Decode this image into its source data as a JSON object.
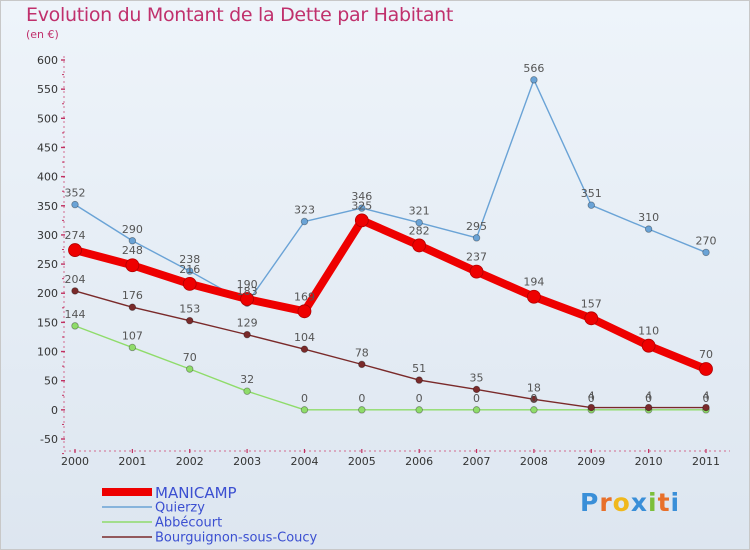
{
  "header": {
    "title": "Evolution du Montant de la Dette par Habitant",
    "subtitle": "(en €)"
  },
  "logo": {
    "text": "Proxiti",
    "letters": [
      "P",
      "r",
      "o",
      "x",
      "i",
      "t",
      "i"
    ],
    "colors": [
      "#3a8fd8",
      "#e8702a",
      "#f0b81c",
      "#3a8fd8",
      "#7cbf3a",
      "#e8702a",
      "#3a8fd8"
    ]
  },
  "chart_data": {
    "type": "line",
    "title": "Evolution du Montant de la Dette par Habitant",
    "subtitle": "(en €)",
    "xlabel": "",
    "ylabel": "",
    "categories": [
      "2000",
      "2001",
      "2002",
      "2003",
      "2004",
      "2005",
      "2006",
      "2007",
      "2008",
      "2009",
      "2010",
      "2011"
    ],
    "ylim": [
      -50,
      600
    ],
    "yticks": [
      -50,
      0,
      50,
      100,
      150,
      200,
      250,
      300,
      350,
      400,
      450,
      500,
      550,
      600
    ],
    "grid": false,
    "legend_position": "bottom-left",
    "series": [
      {
        "name": "MANICAMP",
        "color": "#ee0000",
        "values": [
          274,
          248,
          216,
          190,
          169,
          325,
          282,
          237,
          194,
          157,
          110,
          70
        ],
        "labels": [
          "274",
          "248",
          "216",
          "190",
          "169",
          "325",
          "282",
          "237",
          "194",
          "157",
          "110",
          "70"
        ]
      },
      {
        "name": "Quierzy",
        "color": "#6aa3d6",
        "values": [
          352,
          290,
          238,
          183,
          323,
          346,
          321,
          295,
          566,
          351,
          310,
          270
        ],
        "labels": [
          "352",
          "290",
          "238",
          "183",
          "323",
          "346",
          "321",
          "295",
          "566",
          "351",
          "310",
          "270"
        ]
      },
      {
        "name": "Abbécourt",
        "color": "#8fdc6a",
        "values": [
          144,
          107,
          70,
          32,
          0,
          0,
          0,
          0,
          0,
          0,
          0,
          0
        ],
        "labels": [
          "144",
          "107",
          "70",
          "32",
          "0",
          "0",
          "0",
          "0",
          "0",
          "0",
          "0",
          "0"
        ]
      },
      {
        "name": "Bourguignon-sous-Coucy",
        "color": "#7a2a2a",
        "values": [
          204,
          176,
          153,
          129,
          104,
          78,
          51,
          35,
          18,
          4,
          4,
          4
        ],
        "labels": [
          "204",
          "176",
          "153",
          "129",
          "104",
          "78",
          "51",
          "35",
          "18",
          "4",
          "4",
          "4"
        ]
      }
    ]
  }
}
